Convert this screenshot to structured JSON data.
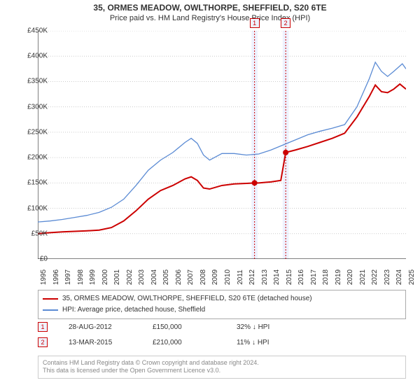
{
  "title": {
    "main": "35, ORMES MEADOW, OWLTHORPE, SHEFFIELD, S20 6TE",
    "sub": "Price paid vs. HM Land Registry's House Price Index (HPI)",
    "main_fontsize": 12,
    "sub_fontsize": 11
  },
  "chart": {
    "type": "line",
    "background_color": "#ffffff",
    "grid_color": "#cccccc",
    "axis_color": "#000000",
    "xlim": [
      1995,
      2025
    ],
    "ylim": [
      0,
      450000
    ],
    "y_ticks": [
      {
        "v": 0,
        "label": "£0"
      },
      {
        "v": 50000,
        "label": "£50K"
      },
      {
        "v": 100000,
        "label": "£100K"
      },
      {
        "v": 150000,
        "label": "£150K"
      },
      {
        "v": 200000,
        "label": "£200K"
      },
      {
        "v": 250000,
        "label": "£250K"
      },
      {
        "v": 300000,
        "label": "£300K"
      },
      {
        "v": 350000,
        "label": "£350K"
      },
      {
        "v": 400000,
        "label": "£400K"
      },
      {
        "v": 450000,
        "label": "£450K"
      }
    ],
    "x_ticks": [
      1995,
      1996,
      1997,
      1998,
      1999,
      2000,
      2001,
      2002,
      2003,
      2004,
      2005,
      2006,
      2007,
      2008,
      2009,
      2010,
      2011,
      2012,
      2013,
      2014,
      2015,
      2016,
      2017,
      2018,
      2019,
      2020,
      2021,
      2022,
      2023,
      2024,
      2025
    ],
    "label_fontsize": 10,
    "series": {
      "property": {
        "label": "35, ORMES MEADOW, OWLTHORPE, SHEFFIELD, S20 6TE (detached house)",
        "color": "#cc0000",
        "width": 2,
        "points": [
          [
            1995,
            50000
          ],
          [
            1996,
            52000
          ],
          [
            1997,
            53500
          ],
          [
            1998,
            54500
          ],
          [
            1999,
            55500
          ],
          [
            2000,
            57000
          ],
          [
            2001,
            62000
          ],
          [
            2002,
            75000
          ],
          [
            2003,
            95000
          ],
          [
            2004,
            118000
          ],
          [
            2005,
            135000
          ],
          [
            2006,
            145000
          ],
          [
            2007,
            158000
          ],
          [
            2007.5,
            162000
          ],
          [
            2008,
            155000
          ],
          [
            2008.5,
            140000
          ],
          [
            2009,
            138000
          ],
          [
            2010,
            145000
          ],
          [
            2011,
            148000
          ],
          [
            2012,
            149000
          ],
          [
            2012.66,
            150000
          ],
          [
            2013,
            150000
          ],
          [
            2014,
            152000
          ],
          [
            2014.8,
            155000
          ],
          [
            2015.2,
            210000
          ],
          [
            2016,
            215000
          ],
          [
            2017,
            222000
          ],
          [
            2018,
            230000
          ],
          [
            2019,
            238000
          ],
          [
            2020,
            248000
          ],
          [
            2021,
            280000
          ],
          [
            2022,
            320000
          ],
          [
            2022.5,
            343000
          ],
          [
            2023,
            330000
          ],
          [
            2023.5,
            328000
          ],
          [
            2024,
            335000
          ],
          [
            2024.5,
            345000
          ],
          [
            2025,
            335000
          ]
        ]
      },
      "hpi": {
        "label": "HPI: Average price, detached house, Sheffield",
        "color": "#5b8bd4",
        "width": 1.3,
        "points": [
          [
            1995,
            73000
          ],
          [
            1996,
            75000
          ],
          [
            1997,
            78000
          ],
          [
            1998,
            82000
          ],
          [
            1999,
            86000
          ],
          [
            2000,
            92000
          ],
          [
            2001,
            102000
          ],
          [
            2002,
            118000
          ],
          [
            2003,
            145000
          ],
          [
            2004,
            175000
          ],
          [
            2005,
            195000
          ],
          [
            2006,
            210000
          ],
          [
            2007,
            230000
          ],
          [
            2007.5,
            238000
          ],
          [
            2008,
            228000
          ],
          [
            2008.5,
            205000
          ],
          [
            2009,
            195000
          ],
          [
            2010,
            208000
          ],
          [
            2011,
            208000
          ],
          [
            2012,
            205000
          ],
          [
            2013,
            207000
          ],
          [
            2014,
            215000
          ],
          [
            2015,
            225000
          ],
          [
            2016,
            235000
          ],
          [
            2017,
            245000
          ],
          [
            2018,
            252000
          ],
          [
            2019,
            258000
          ],
          [
            2020,
            265000
          ],
          [
            2021,
            300000
          ],
          [
            2022,
            355000
          ],
          [
            2022.5,
            388000
          ],
          [
            2023,
            370000
          ],
          [
            2023.5,
            360000
          ],
          [
            2024,
            370000
          ],
          [
            2024.7,
            385000
          ],
          [
            2025,
            375000
          ]
        ]
      }
    },
    "sale_markers": [
      {
        "idx": "1",
        "x": 2012.66,
        "y": 150000,
        "band_width_years": 0.25
      },
      {
        "idx": "2",
        "x": 2015.2,
        "y": 210000,
        "band_width_years": 0.25
      }
    ],
    "marker_box_bg": "#eef2ff",
    "marker_box_border": "#cc0000"
  },
  "legend": {
    "rows": [
      {
        "color": "#cc0000",
        "label": "35, ORMES MEADOW, OWLTHORPE, SHEFFIELD, S20 6TE (detached house)"
      },
      {
        "color": "#5b8bd4",
        "label": "HPI: Average price, detached house, Sheffield"
      }
    ]
  },
  "sales": [
    {
      "idx": "1",
      "date": "28-AUG-2012",
      "price": "£150,000",
      "delta": "32% ↓ HPI"
    },
    {
      "idx": "2",
      "date": "13-MAR-2015",
      "price": "£210,000",
      "delta": "11% ↓ HPI"
    }
  ],
  "footer": {
    "line1": "Contains HM Land Registry data © Crown copyright and database right 2024.",
    "line2": "This data is licensed under the Open Government Licence v3.0."
  }
}
